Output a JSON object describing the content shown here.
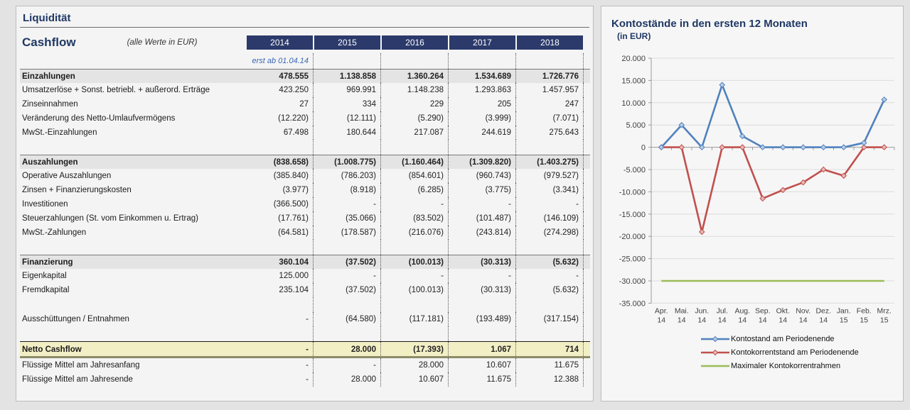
{
  "sheet": {
    "title": "Liquidität",
    "table_title": "Cashflow",
    "units_note": "(alle Werte in EUR)",
    "start_note": "erst ab 01.04.14"
  },
  "colors": {
    "title_navy": "#1f3864",
    "year_header_bg": "#2b3a6b",
    "netto_row_bg": "#f3efc5",
    "note_blue": "#3a66b5"
  },
  "table": {
    "years": [
      "2014",
      "2015",
      "2016",
      "2017",
      "2018"
    ],
    "rows": [
      {
        "label": "Einzahlungen",
        "style": "section",
        "values": [
          "478.555",
          "1.138.858",
          "1.360.264",
          "1.534.689",
          "1.726.776"
        ]
      },
      {
        "label": "Umsatzerlöse + Sonst. betriebl. + außerord. Erträge",
        "values": [
          "423.250",
          "969.991",
          "1.148.238",
          "1.293.863",
          "1.457.957"
        ]
      },
      {
        "label": "Zinseinnahmen",
        "values": [
          "27",
          "334",
          "229",
          "205",
          "247"
        ]
      },
      {
        "label": "Veränderung des Netto-Umlaufvermögens",
        "values": [
          "(12.220)",
          "(12.111)",
          "(5.290)",
          "(3.999)",
          "(7.071)"
        ]
      },
      {
        "label": "MwSt.-Einzahlungen",
        "values": [
          "67.498",
          "180.644",
          "217.087",
          "244.619",
          "275.643"
        ]
      },
      {
        "style": "spacer"
      },
      {
        "label": "Auszahlungen",
        "style": "section",
        "values": [
          "(838.658)",
          "(1.008.775)",
          "(1.160.464)",
          "(1.309.820)",
          "(1.403.275)"
        ]
      },
      {
        "label": "Operative Auszahlungen",
        "values": [
          "(385.840)",
          "(786.203)",
          "(854.601)",
          "(960.743)",
          "(979.527)"
        ]
      },
      {
        "label": "Zinsen + Finanzierungskosten",
        "values": [
          "(3.977)",
          "(8.918)",
          "(6.285)",
          "(3.775)",
          "(3.341)"
        ]
      },
      {
        "label": "Investitionen",
        "values": [
          "(366.500)",
          "-",
          "-",
          "-",
          "-"
        ]
      },
      {
        "label": "Steuerzahlungen (St. vom Einkommen u. Ertrag)",
        "values": [
          "(17.761)",
          "(35.066)",
          "(83.502)",
          "(101.487)",
          "(146.109)"
        ]
      },
      {
        "label": "MwSt.-Zahlungen",
        "values": [
          "(64.581)",
          "(178.587)",
          "(216.076)",
          "(243.814)",
          "(274.298)"
        ]
      },
      {
        "style": "spacer"
      },
      {
        "label": "Finanzierung",
        "style": "section",
        "values": [
          "360.104",
          "(37.502)",
          "(100.013)",
          "(30.313)",
          "(5.632)"
        ]
      },
      {
        "label": "Eigenkapital",
        "values": [
          "125.000",
          "-",
          "-",
          "-",
          "-"
        ]
      },
      {
        "label": "Fremdkapital",
        "values": [
          "235.104",
          "(37.502)",
          "(100.013)",
          "(30.313)",
          "(5.632)"
        ]
      },
      {
        "style": "spacer"
      },
      {
        "label": "Ausschüttungen / Entnahmen",
        "values": [
          "-",
          "(64.580)",
          "(117.181)",
          "(193.489)",
          "(317.154)"
        ]
      },
      {
        "style": "spacer"
      },
      {
        "label": "Netto Cashflow",
        "style": "total",
        "values": [
          "-",
          "28.000",
          "(17.393)",
          "1.067",
          "714"
        ]
      },
      {
        "label": "Flüssige Mittel am Jahresanfang",
        "values": [
          "-",
          "-",
          "28.000",
          "10.607",
          "11.675"
        ]
      },
      {
        "label": "Flüssige Mittel am Jahresende",
        "values": [
          "-",
          "28.000",
          "10.607",
          "11.675",
          "12.388"
        ]
      }
    ]
  },
  "chart_data": {
    "type": "line",
    "title": "Kontostände in den ersten 12 Monaten",
    "subtitle": "(in EUR)",
    "categories": [
      "Apr. 14",
      "Mai. 14",
      "Jun. 14",
      "Jul. 14",
      "Aug. 14",
      "Sep. 14",
      "Okt. 14",
      "Nov. 14",
      "Dez. 14",
      "Jan. 15",
      "Feb. 15",
      "Mrz. 15"
    ],
    "series": [
      {
        "name": "Kontostand am Periodenende",
        "color": "#4f81bd",
        "marker": "diamond",
        "marker_fill": "#b8cce4",
        "values": [
          0,
          5000,
          0,
          14000,
          2500,
          0,
          0,
          0,
          0,
          0,
          1000,
          10700
        ]
      },
      {
        "name": "Kontokorrentstand am Periodenende",
        "color": "#c0504d",
        "marker": "diamond",
        "marker_fill": "#e6b9b8",
        "values": [
          0,
          0,
          -19000,
          0,
          0,
          -11500,
          -9600,
          -7900,
          -5000,
          -6400,
          0,
          0
        ]
      },
      {
        "name": "Maximaler Kontokorrentrahmen",
        "color": "#9bbb59",
        "marker": "none",
        "values": [
          -30000,
          -30000,
          -30000,
          -30000,
          -30000,
          -30000,
          -30000,
          -30000,
          -30000,
          -30000,
          -30000,
          -30000
        ]
      }
    ],
    "ylim": [
      -35000,
      20000
    ],
    "ytick_step": 5000,
    "y_tick_labels": [
      "20.000",
      "15.000",
      "10.000",
      "5.000",
      "0",
      "-5.000",
      "-10.000",
      "-15.000",
      "-20.000",
      "-25.000",
      "-30.000",
      "-35.000"
    ],
    "grid": true,
    "legend_position": "bottom-left"
  }
}
